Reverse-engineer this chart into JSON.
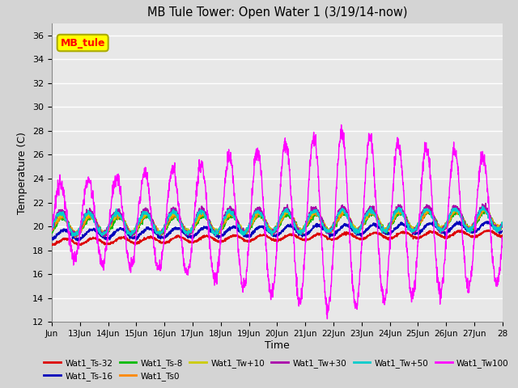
{
  "title": "MB Tule Tower: Open Water 1 (3/19/14-now)",
  "xlabel": "Time",
  "ylabel": "Temperature (C)",
  "ylim": [
    12,
    37
  ],
  "xlim": [
    0,
    16
  ],
  "yticks": [
    12,
    14,
    16,
    18,
    20,
    22,
    24,
    26,
    28,
    30,
    32,
    34,
    36
  ],
  "xtick_labels": [
    "Jun",
    "13Jun",
    "14Jun",
    "15Jun",
    "16Jun",
    "17Jun",
    "18Jun",
    "19Jun",
    "20Jun",
    "21Jun",
    "22Jun",
    "23Jun",
    "24Jun",
    "25Jun",
    "26Jun",
    "27Jun",
    "28"
  ],
  "xtick_positions": [
    0,
    1,
    2,
    3,
    4,
    5,
    6,
    7,
    8,
    9,
    10,
    11,
    12,
    13,
    14,
    15,
    16
  ],
  "fig_bg_color": "#d4d4d4",
  "plot_bg_color": "#e8e8e8",
  "grid_color": "#ffffff",
  "legend_label": "MB_tule",
  "legend_box_facecolor": "#ffff00",
  "legend_box_edgecolor": "#aaaa00",
  "series": [
    {
      "label": "Wat1_Ts-32",
      "color": "#dd0000",
      "lw": 1.2
    },
    {
      "label": "Wat1_Ts-16",
      "color": "#0000bb",
      "lw": 1.2
    },
    {
      "label": "Wat1_Ts-8",
      "color": "#00bb00",
      "lw": 1.2
    },
    {
      "label": "Wat1_Ts0",
      "color": "#ff8800",
      "lw": 1.2
    },
    {
      "label": "Wat1_Tw+10",
      "color": "#cccc00",
      "lw": 1.2
    },
    {
      "label": "Wat1_Tw+30",
      "color": "#aa00aa",
      "lw": 1.2
    },
    {
      "label": "Wat1_Tw+50",
      "color": "#00cccc",
      "lw": 1.2
    },
    {
      "label": "Wat1_Tw100",
      "color": "#ff00ff",
      "lw": 1.0
    }
  ]
}
